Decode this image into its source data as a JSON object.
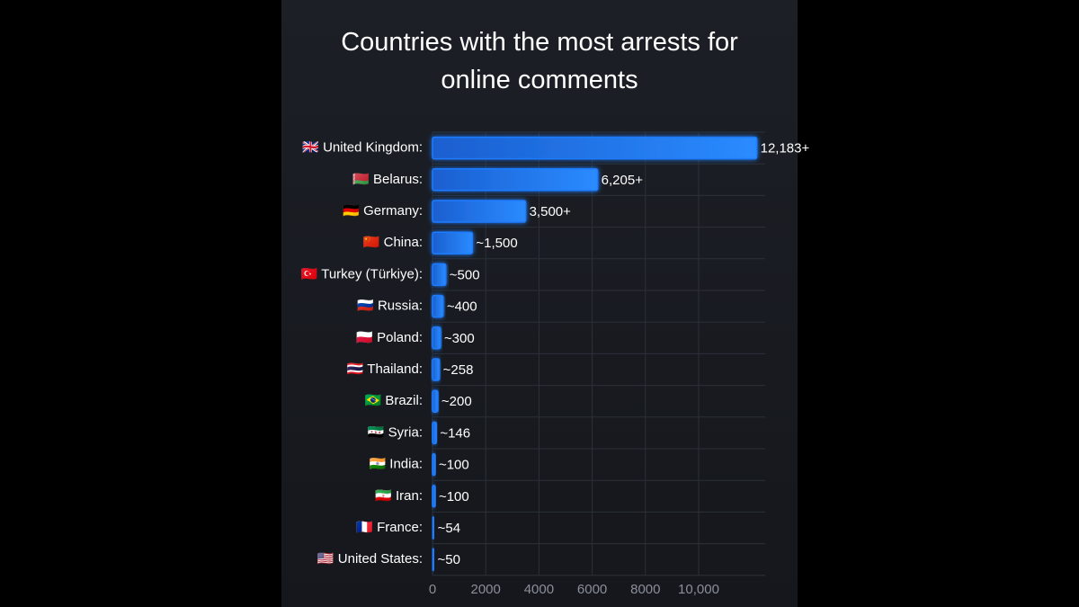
{
  "chart_data": {
    "type": "barh",
    "title": "Countries with the most arrests for online comments",
    "categories": [
      "🇬🇧 United Kingdom:",
      "🇧🇾 Belarus:",
      "🇩🇪 Germany:",
      "🇨🇳 China:",
      "🇹🇷 Turkey (Türkiye):",
      "🇷🇺 Russia:",
      "🇵🇱 Poland:",
      "🇹🇭 Thailand:",
      "🇧🇷 Brazil:",
      "🇸🇾 Syria:",
      "🇮🇳 India:",
      "🇮🇷 Iran:",
      "🇫🇷 France:",
      "🇺🇸 United States:"
    ],
    "values": [
      12183,
      6205,
      3500,
      1500,
      500,
      400,
      300,
      258,
      200,
      146,
      100,
      100,
      54,
      50
    ],
    "value_labels": [
      "12,183+",
      "6,205+",
      "3,500+",
      "~1,500",
      "~500",
      "~400",
      "~300",
      "~258",
      "~200",
      "~146",
      "~100",
      "~100",
      "~54",
      "~50"
    ],
    "color": "#1f7bff",
    "xlim": [
      0,
      12500
    ],
    "xticks": [
      0,
      2000,
      4000,
      6000,
      8000,
      {
        "value": 10000,
        "label": "10,000"
      }
    ],
    "grid": true
  }
}
